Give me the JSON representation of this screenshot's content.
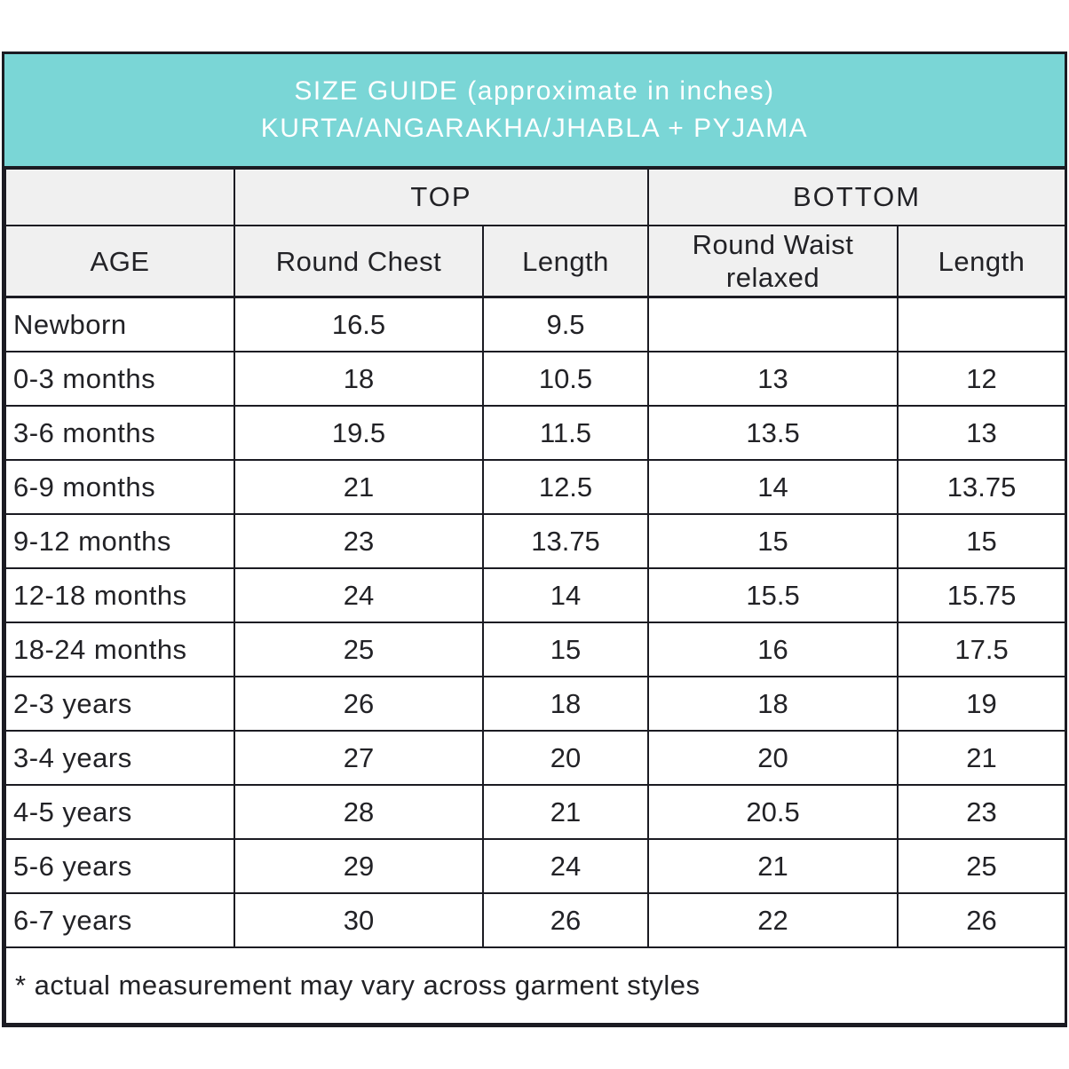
{
  "title": {
    "line1": "SIZE GUIDE (approximate in inches)",
    "line2": "KURTA/ANGARAKHA/JHABLA + PYJAMA"
  },
  "table": {
    "group_headers": {
      "top": "TOP",
      "bottom": "BOTTOM"
    },
    "column_headers": {
      "age": "AGE",
      "round_chest": "Round Chest",
      "top_length": "Length",
      "round_waist": "Round Waist relaxed",
      "bottom_length": "Length"
    },
    "rows": [
      {
        "age": "Newborn",
        "round_chest": "16.5",
        "top_length": "9.5",
        "round_waist": "",
        "bottom_length": ""
      },
      {
        "age": "0-3 months",
        "round_chest": "18",
        "top_length": "10.5",
        "round_waist": "13",
        "bottom_length": "12"
      },
      {
        "age": "3-6 months",
        "round_chest": "19.5",
        "top_length": "11.5",
        "round_waist": "13.5",
        "bottom_length": "13"
      },
      {
        "age": "6-9 months",
        "round_chest": "21",
        "top_length": "12.5",
        "round_waist": "14",
        "bottom_length": "13.75"
      },
      {
        "age": "9-12 months",
        "round_chest": "23",
        "top_length": "13.75",
        "round_waist": "15",
        "bottom_length": "15"
      },
      {
        "age": "12-18 months",
        "round_chest": "24",
        "top_length": "14",
        "round_waist": "15.5",
        "bottom_length": "15.75"
      },
      {
        "age": "18-24 months",
        "round_chest": "25",
        "top_length": "15",
        "round_waist": "16",
        "bottom_length": "17.5"
      },
      {
        "age": "2-3 years",
        "round_chest": "26",
        "top_length": "18",
        "round_waist": "18",
        "bottom_length": "19"
      },
      {
        "age": "3-4 years",
        "round_chest": "27",
        "top_length": "20",
        "round_waist": "20",
        "bottom_length": "21"
      },
      {
        "age": "4-5 years",
        "round_chest": "28",
        "top_length": "21",
        "round_waist": "20.5",
        "bottom_length": "23"
      },
      {
        "age": "5-6 years",
        "round_chest": "29",
        "top_length": "24",
        "round_waist": "21",
        "bottom_length": "25"
      },
      {
        "age": "6-7 years",
        "round_chest": "30",
        "top_length": "26",
        "round_waist": "22",
        "bottom_length": "26"
      }
    ],
    "footnote": "* actual measurement may vary across garment styles"
  },
  "colors": {
    "title_band_bg": "#7ad6d6",
    "title_text": "#ffffff",
    "header_cell_bg": "#f0f0f0",
    "border": "#1b1b22",
    "body_text": "#222226",
    "row_bg": "#ffffff"
  }
}
